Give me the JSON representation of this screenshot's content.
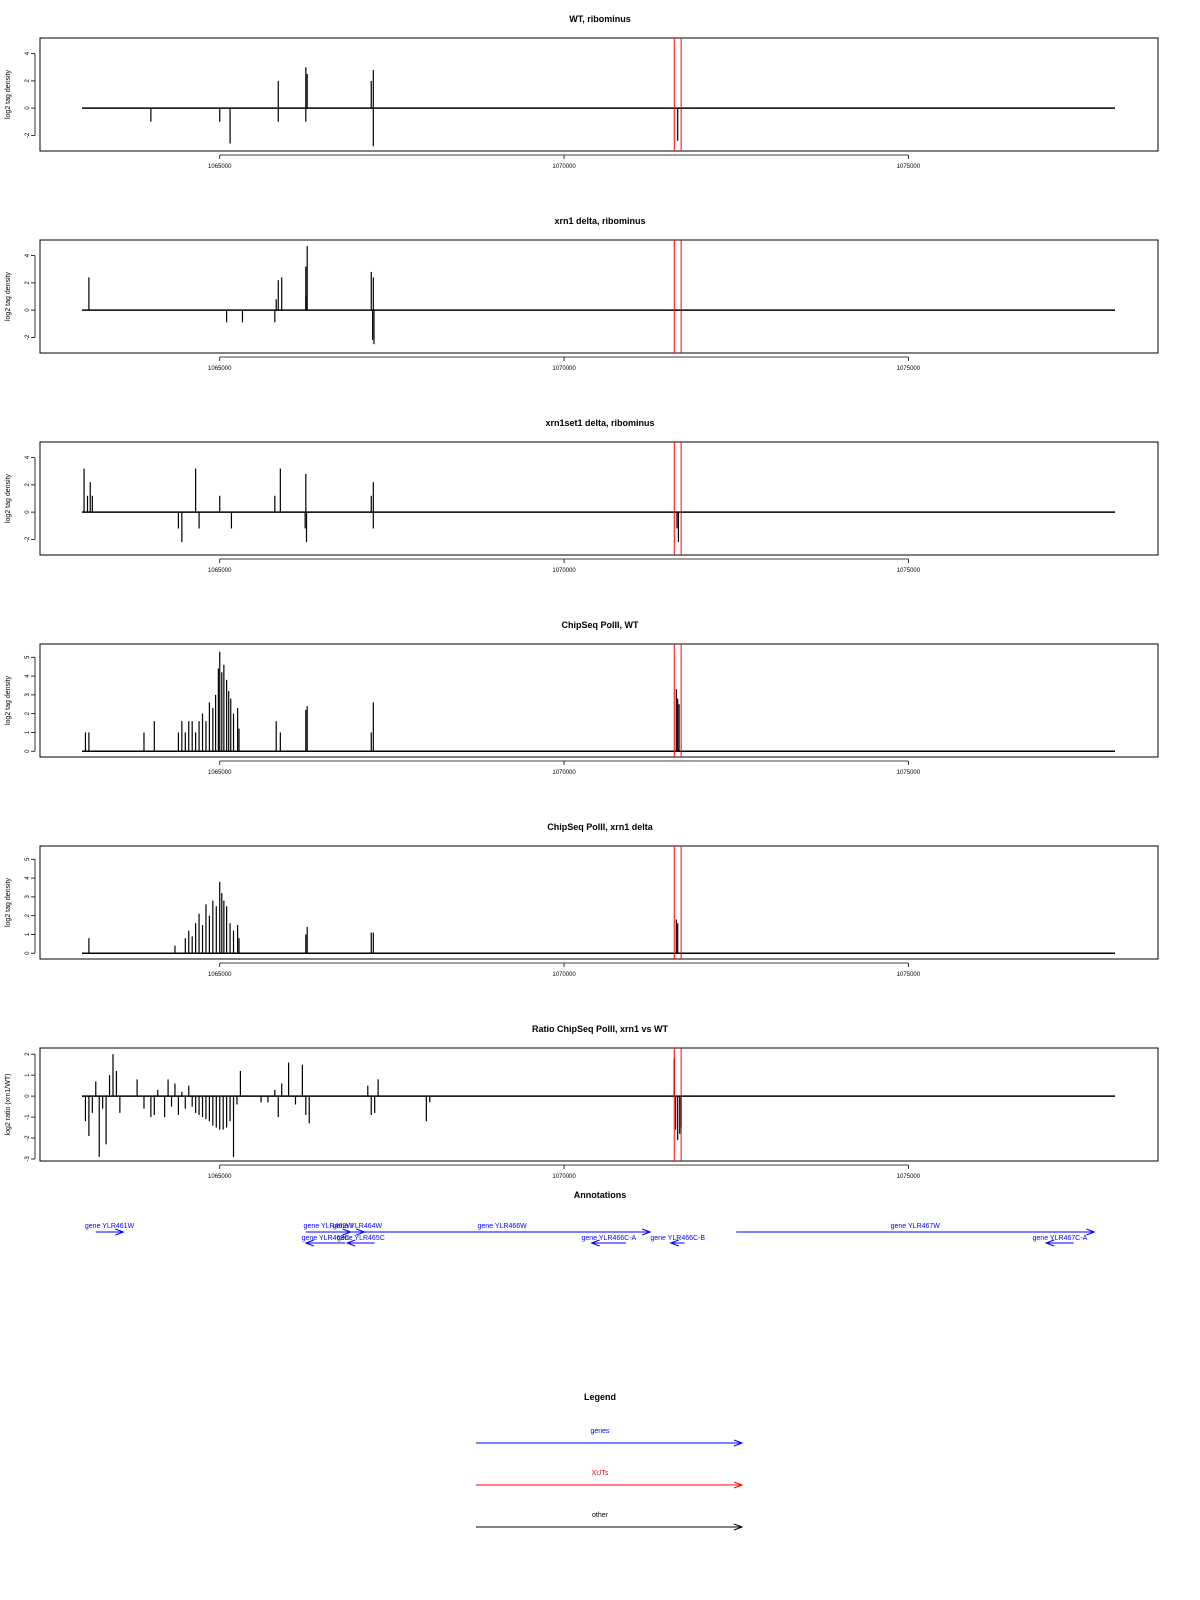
{
  "chart_data": [
    {
      "type": "bar",
      "title": "WT, ribominus",
      "ylabel": "log2 tag density",
      "xlim": [
        1063000,
        1078000
      ],
      "ylim": [
        -3,
        5
      ],
      "yticks": [
        -2,
        0,
        2,
        4
      ],
      "xticks": [
        1065000,
        1070000,
        1075000
      ],
      "xtick_labels": [
        "1065000",
        "1070000",
        "1075000"
      ],
      "baseline": 0,
      "red_lines": [
        1071600,
        1071700
      ],
      "bars": [
        [
          1064000,
          -1
        ],
        [
          1065000,
          -1
        ],
        [
          1065150,
          -2.6
        ],
        [
          1065850,
          2
        ],
        [
          1065850,
          -1
        ],
        [
          1066250,
          3
        ],
        [
          1066250,
          -1
        ],
        [
          1066270,
          2.5
        ],
        [
          1067200,
          2
        ],
        [
          1067230,
          2.8
        ],
        [
          1067230,
          -2.8
        ],
        [
          1071650,
          -2.4
        ]
      ]
    },
    {
      "type": "bar",
      "title": "xrn1 delta, ribominus",
      "ylabel": "log2 tag density",
      "xlim": [
        1063000,
        1078000
      ],
      "ylim": [
        -3,
        5
      ],
      "yticks": [
        -2,
        0,
        2,
        4
      ],
      "xticks": [
        1065000,
        1070000,
        1075000
      ],
      "xtick_labels": [
        "1065000",
        "1070000",
        "1075000"
      ],
      "baseline": 0,
      "red_lines": [
        1071600,
        1071700
      ],
      "bars": [
        [
          1063100,
          2.4
        ],
        [
          1065100,
          -0.9
        ],
        [
          1065330,
          -0.9
        ],
        [
          1065800,
          -0.9
        ],
        [
          1065820,
          0.8
        ],
        [
          1065850,
          2.2
        ],
        [
          1065900,
          2.4
        ],
        [
          1066250,
          3.2
        ],
        [
          1066270,
          4.7
        ],
        [
          1066250,
          1
        ],
        [
          1067200,
          2.8
        ],
        [
          1067230,
          2.4
        ],
        [
          1067220,
          -2.2
        ],
        [
          1067240,
          -2.5
        ]
      ]
    },
    {
      "type": "bar",
      "title": "xrn1set1 delta, ribominus",
      "ylabel": "log2 tag density",
      "xlim": [
        1063000,
        1078000
      ],
      "ylim": [
        -3,
        5
      ],
      "yticks": [
        -2,
        0,
        2,
        4
      ],
      "xticks": [
        1065000,
        1070000,
        1075000
      ],
      "xtick_labels": [
        "1065000",
        "1070000",
        "1075000"
      ],
      "baseline": 0,
      "red_lines": [
        1071600,
        1071700
      ],
      "bars": [
        [
          1063030,
          3.2
        ],
        [
          1063080,
          1.2
        ],
        [
          1063120,
          2.2
        ],
        [
          1063150,
          1.2
        ],
        [
          1064400,
          -1.2
        ],
        [
          1064450,
          -2.2
        ],
        [
          1064650,
          3.2
        ],
        [
          1064700,
          -1.2
        ],
        [
          1065000,
          1.2
        ],
        [
          1065170,
          -1.2
        ],
        [
          1065800,
          1.2
        ],
        [
          1065880,
          3.2
        ],
        [
          1066250,
          2.8
        ],
        [
          1066240,
          -1.2
        ],
        [
          1066260,
          -2.2
        ],
        [
          1067200,
          1.2
        ],
        [
          1067230,
          2.2
        ],
        [
          1067230,
          -1.2
        ],
        [
          1071640,
          -1.2
        ],
        [
          1071660,
          -2.2
        ]
      ]
    },
    {
      "type": "bar",
      "title": "ChipSeq PolII, WT",
      "ylabel": "log2 tag density",
      "xlim": [
        1063000,
        1078000
      ],
      "ylim": [
        -0.2,
        5.6
      ],
      "yticks": [
        0,
        1,
        2,
        3,
        4,
        5
      ],
      "xticks": [
        1065000,
        1070000,
        1075000
      ],
      "xtick_labels": [
        "1065000",
        "1070000",
        "1075000"
      ],
      "baseline": 0,
      "red_lines": [
        1071600,
        1071700
      ],
      "bars": [
        [
          1063050,
          1
        ],
        [
          1063100,
          1
        ],
        [
          1063900,
          1
        ],
        [
          1064050,
          1.6
        ],
        [
          1064400,
          1
        ],
        [
          1064450,
          1.6
        ],
        [
          1064500,
          1
        ],
        [
          1064550,
          1.6
        ],
        [
          1064600,
          1.6
        ],
        [
          1064650,
          1
        ],
        [
          1064700,
          1.6
        ],
        [
          1064750,
          2
        ],
        [
          1064800,
          1.6
        ],
        [
          1064850,
          2.6
        ],
        [
          1064900,
          2.3
        ],
        [
          1064940,
          3
        ],
        [
          1064980,
          4.4
        ],
        [
          1065000,
          5.3
        ],
        [
          1065030,
          4.2
        ],
        [
          1065060,
          4.6
        ],
        [
          1065100,
          3.8
        ],
        [
          1065130,
          3.2
        ],
        [
          1065160,
          2.8
        ],
        [
          1065200,
          2
        ],
        [
          1065260,
          2.3
        ],
        [
          1065280,
          1.2
        ],
        [
          1065820,
          1.6
        ],
        [
          1065880,
          1
        ],
        [
          1066250,
          2.2
        ],
        [
          1066270,
          2.4
        ],
        [
          1067200,
          1
        ],
        [
          1067230,
          2.6
        ],
        [
          1071630,
          3.3
        ],
        [
          1071650,
          2.8
        ],
        [
          1071670,
          2.5
        ]
      ]
    },
    {
      "type": "bar",
      "title": "ChipSeq PolII, xrn1 delta",
      "ylabel": "log2 tag density",
      "xlim": [
        1063000,
        1078000
      ],
      "ylim": [
        -0.2,
        5.6
      ],
      "yticks": [
        0,
        1,
        2,
        3,
        4,
        5
      ],
      "xticks": [
        1065000,
        1070000,
        1075000
      ],
      "xtick_labels": [
        "1065000",
        "1070000",
        "1075000"
      ],
      "baseline": 0,
      "red_lines": [
        1071600,
        1071700
      ],
      "bars": [
        [
          1063100,
          0.8
        ],
        [
          1064350,
          0.4
        ],
        [
          1064500,
          0.8
        ],
        [
          1064550,
          1.2
        ],
        [
          1064600,
          0.9
        ],
        [
          1064650,
          1.6
        ],
        [
          1064700,
          2.1
        ],
        [
          1064750,
          1.5
        ],
        [
          1064800,
          2.6
        ],
        [
          1064850,
          2
        ],
        [
          1064900,
          2.8
        ],
        [
          1064950,
          2.5
        ],
        [
          1065000,
          3.8
        ],
        [
          1065030,
          3.2
        ],
        [
          1065060,
          2.8
        ],
        [
          1065100,
          2.5
        ],
        [
          1065150,
          1.6
        ],
        [
          1065200,
          1.2
        ],
        [
          1065260,
          1.5
        ],
        [
          1065280,
          0.8
        ],
        [
          1066250,
          1
        ],
        [
          1066270,
          1.4
        ],
        [
          1067200,
          1.1
        ],
        [
          1067230,
          1.1
        ],
        [
          1071630,
          1.8
        ],
        [
          1071650,
          1.6
        ]
      ]
    },
    {
      "type": "bar",
      "title": "Ratio ChipSeq PolII, xrn1 vs WT",
      "ylabel": "log2 ratio (xrn1/WT)",
      "xlim": [
        1063000,
        1078000
      ],
      "ylim": [
        -3,
        2.2
      ],
      "yticks": [
        -3,
        -2,
        -1,
        0,
        1,
        2
      ],
      "xticks": [
        1065000,
        1070000,
        1075000
      ],
      "xtick_labels": [
        "1065000",
        "1070000",
        "1075000"
      ],
      "baseline": 0,
      "red_lines": [
        1071600,
        1071700
      ],
      "bars": [
        [
          1063050,
          -1.2
        ],
        [
          1063100,
          -1.9
        ],
        [
          1063150,
          -0.8
        ],
        [
          1063200,
          0.7
        ],
        [
          1063250,
          -2.9
        ],
        [
          1063300,
          -0.6
        ],
        [
          1063350,
          -2.3
        ],
        [
          1063400,
          1
        ],
        [
          1063450,
          2
        ],
        [
          1063500,
          1.2
        ],
        [
          1063550,
          -0.8
        ],
        [
          1063800,
          0.8
        ],
        [
          1063900,
          -0.6
        ],
        [
          1064000,
          -1
        ],
        [
          1064050,
          -0.9
        ],
        [
          1064100,
          0.3
        ],
        [
          1064200,
          -1
        ],
        [
          1064250,
          0.8
        ],
        [
          1064300,
          -0.5
        ],
        [
          1064350,
          0.6
        ],
        [
          1064400,
          -0.9
        ],
        [
          1064450,
          0.2
        ],
        [
          1064500,
          -0.6
        ],
        [
          1064550,
          0.5
        ],
        [
          1064600,
          -0.5
        ],
        [
          1064650,
          -0.8
        ],
        [
          1064700,
          -0.9
        ],
        [
          1064750,
          -1
        ],
        [
          1064800,
          -1.1
        ],
        [
          1064850,
          -1.2
        ],
        [
          1064900,
          -1.4
        ],
        [
          1064950,
          -1.5
        ],
        [
          1065000,
          -1.6
        ],
        [
          1065050,
          -1.6
        ],
        [
          1065100,
          -1.5
        ],
        [
          1065150,
          -1.2
        ],
        [
          1065200,
          -2.9
        ],
        [
          1065250,
          -0.4
        ],
        [
          1065300,
          1.2
        ],
        [
          1065600,
          -0.3
        ],
        [
          1065700,
          -0.3
        ],
        [
          1065800,
          0.3
        ],
        [
          1065850,
          -1
        ],
        [
          1065900,
          0.6
        ],
        [
          1066000,
          1.6
        ],
        [
          1066100,
          -0.4
        ],
        [
          1066200,
          1.5
        ],
        [
          1066250,
          -0.9
        ],
        [
          1066300,
          -1.3
        ],
        [
          1067150,
          0.5
        ],
        [
          1067200,
          -0.9
        ],
        [
          1067250,
          -0.8
        ],
        [
          1067300,
          0.8
        ],
        [
          1068000,
          -1.2
        ],
        [
          1068050,
          -0.3
        ],
        [
          1071600,
          1.8
        ],
        [
          1071620,
          -1.6
        ],
        [
          1071650,
          -2.1
        ],
        [
          1071680,
          -1.8
        ],
        [
          1071700,
          -1.5
        ]
      ]
    }
  ],
  "annotations": {
    "title": "Annotations",
    "genes": [
      {
        "label": "gene YLR461W",
        "x1": 1063200,
        "x2": 1063600,
        "direction": "right",
        "row": 1
      },
      {
        "label": "gene YLR462W",
        "x1": 1066250,
        "x2": 1066900,
        "direction": "right",
        "row": 1
      },
      {
        "label": "gene YLR464W",
        "x1": 1066900,
        "x2": 1067100,
        "direction": "right",
        "row": 1
      },
      {
        "label": "gene YLR463C",
        "x1": 1066250,
        "x2": 1066820,
        "direction": "left",
        "row": 2
      },
      {
        "label": "gene YLR465C",
        "x1": 1066850,
        "x2": 1067250,
        "direction": "left",
        "row": 2
      },
      {
        "label": "gene YLR466W",
        "x1": 1066950,
        "x2": 1071250,
        "direction": "right",
        "row": 1
      },
      {
        "label": "gene YLR466C-A",
        "x1": 1070400,
        "x2": 1070900,
        "direction": "left",
        "row": 2
      },
      {
        "label": "gene YLR466C-B",
        "x1": 1071550,
        "x2": 1071750,
        "direction": "left",
        "row": 2
      },
      {
        "label": "gene YLR467W",
        "x1": 1072500,
        "x2": 1077700,
        "direction": "right",
        "row": 1
      },
      {
        "label": "gene YLR467C-A",
        "x1": 1077000,
        "x2": 1077400,
        "direction": "left",
        "row": 2
      }
    ]
  },
  "legend": {
    "title": "Legend",
    "items": [
      {
        "label": "genes",
        "color": "#0000ff"
      },
      {
        "label": "XUTs",
        "color": "#ff0000"
      },
      {
        "label": "other",
        "color": "#000000"
      }
    ]
  },
  "colors": {
    "data": "#000000",
    "xut": "#ff0000",
    "gene": "#0000ff",
    "frame": "#000000"
  }
}
